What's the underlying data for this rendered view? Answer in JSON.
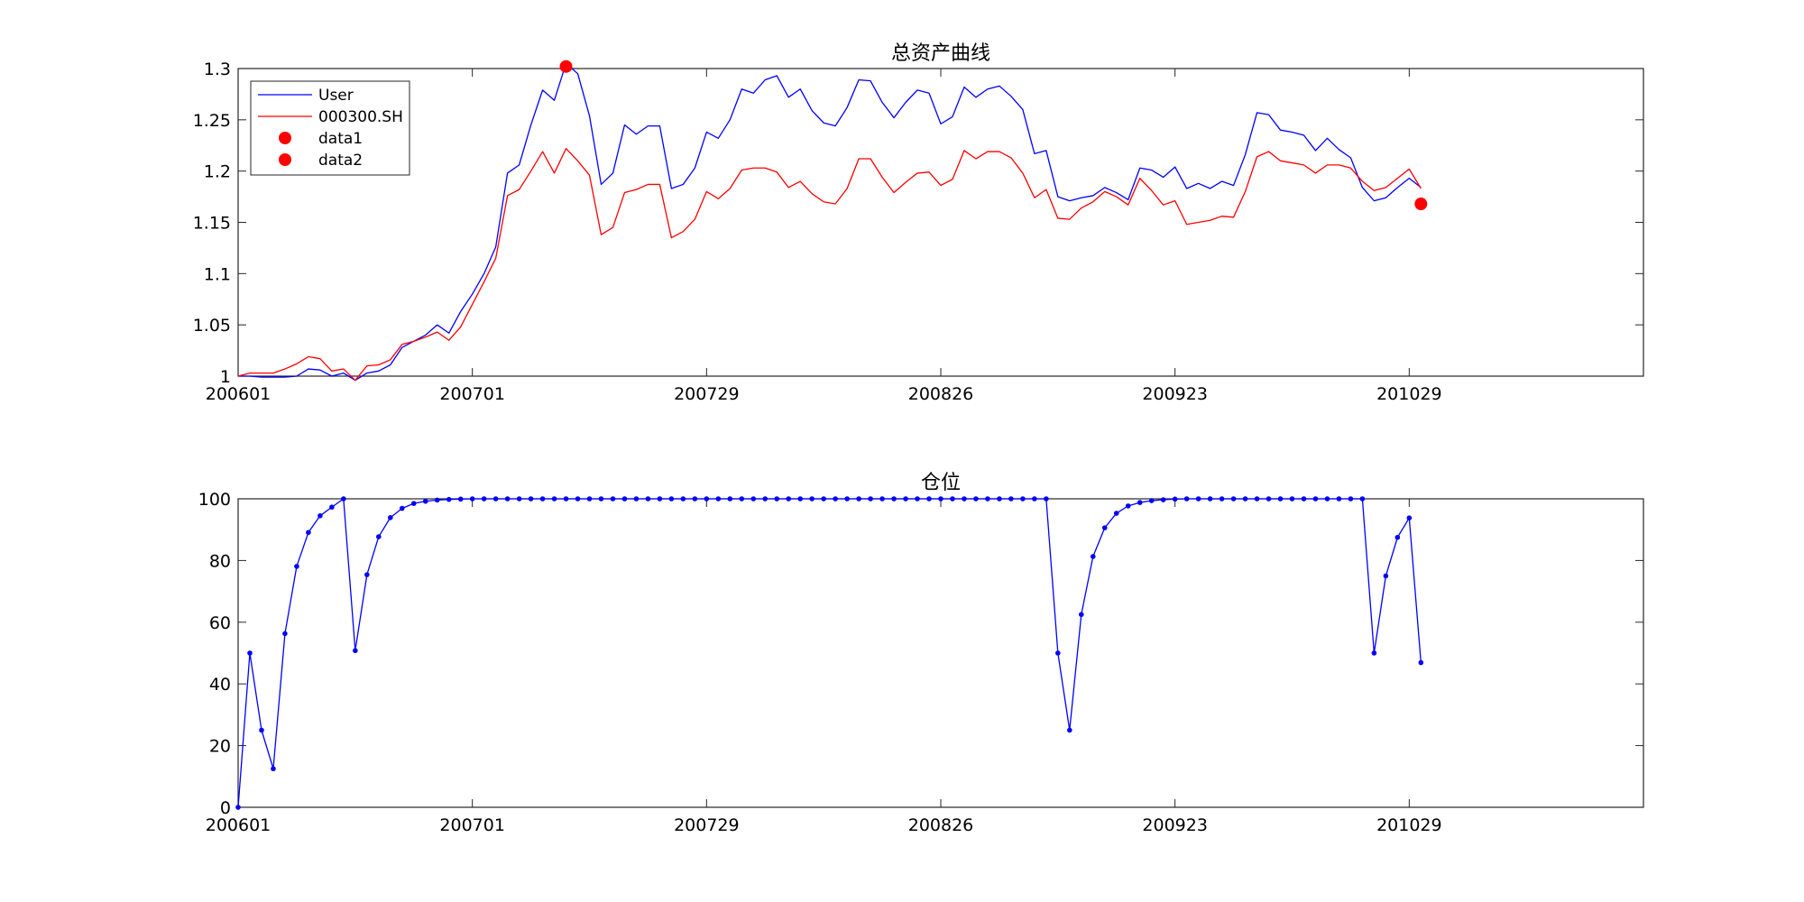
{
  "chart_data": [
    {
      "type": "line",
      "title": "总资产曲线",
      "xlabel": "",
      "ylabel": "",
      "x_tick_labels": [
        "200601",
        "200701",
        "200729",
        "200826",
        "200923",
        "201029"
      ],
      "x_tick_index": [
        1,
        21,
        41,
        61,
        81,
        101
      ],
      "x_range": [
        1,
        121
      ],
      "ylim": [
        1.0,
        1.3
      ],
      "y_tick_labels": [
        "1",
        "1.05",
        "1.1",
        "1.15",
        "1.2",
        "1.25",
        "1.3"
      ],
      "y_ticks": [
        1.0,
        1.05,
        1.1,
        1.15,
        1.2,
        1.25,
        1.3
      ],
      "grid": false,
      "legend_position": "top-left",
      "series": [
        {
          "name": "User",
          "color": "#0000ff",
          "values": [
            1.0,
            1.0,
            0.999,
            0.999,
            0.999,
            1.0,
            1.007,
            1.006,
            1.0,
            1.003,
            0.996,
            1.003,
            1.005,
            1.011,
            1.028,
            1.034,
            1.04,
            1.05,
            1.042,
            1.063,
            1.08,
            1.1,
            1.126,
            1.198,
            1.206,
            1.245,
            1.279,
            1.269,
            1.305,
            1.295,
            1.254,
            1.187,
            1.198,
            1.245,
            1.236,
            1.244,
            1.244,
            1.183,
            1.187,
            1.203,
            1.238,
            1.232,
            1.25,
            1.28,
            1.276,
            1.289,
            1.293,
            1.272,
            1.28,
            1.259,
            1.247,
            1.244,
            1.262,
            1.289,
            1.288,
            1.267,
            1.252,
            1.267,
            1.279,
            1.276,
            1.246,
            1.253,
            1.282,
            1.272,
            1.28,
            1.283,
            1.273,
            1.26,
            1.217,
            1.22,
            1.175,
            1.171,
            1.174,
            1.176,
            1.184,
            1.179,
            1.172,
            1.203,
            1.201,
            1.194,
            1.204,
            1.183,
            1.188,
            1.183,
            1.19,
            1.186,
            1.216,
            1.257,
            1.255,
            1.24,
            1.238,
            1.235,
            1.22,
            1.232,
            1.221,
            1.213,
            1.184,
            1.171,
            1.174,
            1.184,
            1.193,
            1.184
          ]
        },
        {
          "name": "000300.SH",
          "color": "#ff0000",
          "values": [
            1.0,
            1.003,
            1.003,
            1.003,
            1.007,
            1.012,
            1.019,
            1.017,
            1.005,
            1.007,
            0.996,
            1.01,
            1.011,
            1.016,
            1.031,
            1.034,
            1.038,
            1.043,
            1.035,
            1.048,
            1.07,
            1.092,
            1.115,
            1.176,
            1.182,
            1.2,
            1.219,
            1.198,
            1.222,
            1.21,
            1.196,
            1.138,
            1.145,
            1.179,
            1.182,
            1.187,
            1.187,
            1.135,
            1.141,
            1.153,
            1.18,
            1.173,
            1.183,
            1.201,
            1.203,
            1.203,
            1.199,
            1.184,
            1.19,
            1.178,
            1.17,
            1.168,
            1.183,
            1.212,
            1.212,
            1.194,
            1.179,
            1.189,
            1.198,
            1.199,
            1.186,
            1.192,
            1.22,
            1.212,
            1.219,
            1.219,
            1.213,
            1.198,
            1.174,
            1.182,
            1.154,
            1.153,
            1.164,
            1.17,
            1.18,
            1.175,
            1.167,
            1.193,
            1.181,
            1.167,
            1.171,
            1.148,
            1.15,
            1.152,
            1.156,
            1.155,
            1.18,
            1.214,
            1.219,
            1.21,
            1.208,
            1.206,
            1.198,
            1.206,
            1.206,
            1.203,
            1.19,
            1.181,
            1.184,
            1.193,
            1.202,
            1.183
          ]
        }
      ],
      "markers": [
        {
          "name": "data1",
          "color": "#ff0000",
          "x": 29,
          "y": 1.302
        },
        {
          "name": "data2",
          "color": "#ff0000",
          "x": 102,
          "y": 1.168
        }
      ]
    },
    {
      "type": "line",
      "title": "仓位",
      "xlabel": "",
      "ylabel": "",
      "x_tick_labels": [
        "200601",
        "200701",
        "200729",
        "200826",
        "200923",
        "201029"
      ],
      "x_tick_index": [
        1,
        21,
        41,
        61,
        81,
        101
      ],
      "x_range": [
        1,
        121
      ],
      "ylim": [
        0,
        100
      ],
      "y_tick_labels": [
        "0",
        "20",
        "40",
        "60",
        "80",
        "100"
      ],
      "y_ticks": [
        0,
        20,
        40,
        60,
        80,
        100
      ],
      "grid": false,
      "series": [
        {
          "name": "",
          "color": "#0000ff",
          "marker": "dot",
          "values": [
            0,
            50,
            25,
            12.5,
            56.3,
            78.1,
            89.1,
            94.5,
            97.3,
            100,
            50.8,
            75.4,
            87.7,
            93.9,
            96.9,
            98.5,
            99.2,
            99.6,
            99.8,
            99.9,
            100,
            100,
            100,
            100,
            100,
            100,
            100,
            100,
            100,
            100,
            100,
            100,
            100,
            100,
            100,
            100,
            100,
            100,
            100,
            100,
            100,
            100,
            100,
            100,
            100,
            100,
            100,
            100,
            100,
            100,
            100,
            100,
            100,
            100,
            100,
            100,
            100,
            100,
            100,
            100,
            100,
            100,
            100,
            100,
            100,
            100,
            100,
            100,
            100,
            100,
            50,
            25,
            62.5,
            81.3,
            90.6,
            95.3,
            97.7,
            98.8,
            99.4,
            99.7,
            99.9,
            100,
            100,
            100,
            100,
            100,
            100,
            100,
            100,
            100,
            100,
            100,
            100,
            100,
            100,
            100,
            100,
            50,
            75,
            87.5,
            93.8,
            46.9
          ]
        }
      ]
    }
  ]
}
